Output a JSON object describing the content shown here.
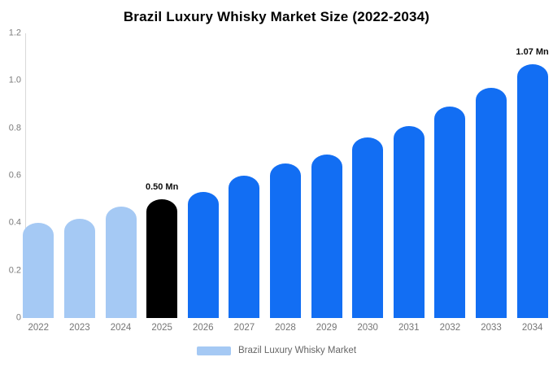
{
  "title": "Brazil Luxury Whisky Market Size (2022-2034)",
  "legend": {
    "label": "Brazil Luxury Whisky Market",
    "swatch_color": "#a5c9f4"
  },
  "colors": {
    "historical_bar": "#a5c9f4",
    "base_year_bar": "#000000",
    "forecast_bar": "#126ef3",
    "axis_line": "#d9d9d9",
    "tick_text": "#7b7b7b",
    "annotation_text": "#0d0d0d"
  },
  "chart_data": {
    "type": "bar",
    "title": "Brazil Luxury Whisky Market Size (2022-2034)",
    "unit": "Mn",
    "categories": [
      "2022",
      "2023",
      "2024",
      "2025",
      "2026",
      "2027",
      "2028",
      "2029",
      "2030",
      "2031",
      "2032",
      "2033",
      "2034"
    ],
    "values": [
      0.4,
      0.42,
      0.47,
      0.5,
      0.53,
      0.6,
      0.65,
      0.69,
      0.76,
      0.81,
      0.89,
      0.97,
      1.07
    ],
    "bar_roles": [
      "historical",
      "historical",
      "historical",
      "base_year",
      "forecast",
      "forecast",
      "forecast",
      "forecast",
      "forecast",
      "forecast",
      "forecast",
      "forecast",
      "forecast"
    ],
    "annotations": [
      {
        "category": "2025",
        "text": "0.50 Mn"
      },
      {
        "category": "2034",
        "text": "1.07 Mn"
      }
    ],
    "xlabel": "",
    "ylabel": "",
    "ylim": [
      0,
      1.2
    ],
    "yticks": [
      {
        "value": 0,
        "label": "0"
      },
      {
        "value": 0.2,
        "label": "0.2"
      },
      {
        "value": 0.4,
        "label": "0.4"
      },
      {
        "value": 0.6,
        "label": "0.6"
      },
      {
        "value": 0.8,
        "label": "0.8"
      },
      {
        "value": 1.0,
        "label": "1.0"
      },
      {
        "value": 1.2,
        "label": "1.2"
      }
    ],
    "grid": false,
    "legend_position": "bottom",
    "legend_entries": [
      "Brazil Luxury Whisky Market"
    ]
  }
}
